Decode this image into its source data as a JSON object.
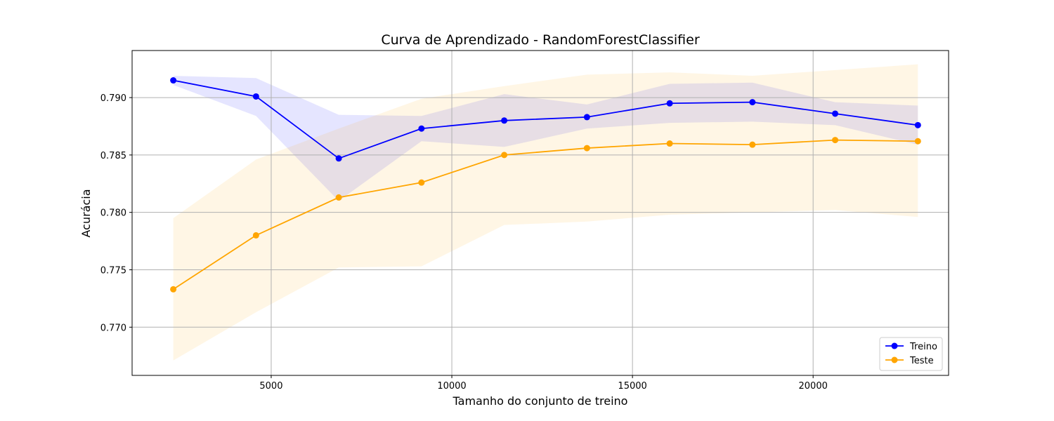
{
  "chart_data": {
    "type": "line",
    "title": "Curva de Aprendizado - RandomForestClassifier",
    "xlabel": "Tamanho do conjunto de treino",
    "ylabel": "Acurácia",
    "xlim": [
      1150,
      23750
    ],
    "ylim": [
      0.7658,
      0.7941
    ],
    "xticks": [
      5000,
      10000,
      15000,
      20000
    ],
    "xtick_labels": [
      "5000",
      "10000",
      "15000",
      "20000"
    ],
    "yticks": [
      0.77,
      0.775,
      0.78,
      0.785,
      0.79
    ],
    "ytick_labels": [
      "0.770",
      "0.775",
      "0.780",
      "0.785",
      "0.790"
    ],
    "grid": true,
    "legend_position": "bottom-right",
    "x": [
      2290,
      4580,
      6870,
      9160,
      11450,
      13740,
      16030,
      18320,
      20610,
      22900
    ],
    "series": [
      {
        "name": "Treino",
        "color": "#0000ff",
        "band_color": "#0000ff",
        "values": [
          0.7915,
          0.7901,
          0.7847,
          0.7873,
          0.788,
          0.7883,
          0.7895,
          0.7896,
          0.7886,
          0.7876
        ],
        "upper": [
          0.7919,
          0.7917,
          0.7885,
          0.7884,
          0.7903,
          0.7894,
          0.7912,
          0.7913,
          0.7896,
          0.7893
        ],
        "lower": [
          0.7911,
          0.7884,
          0.781,
          0.7862,
          0.7857,
          0.7873,
          0.7878,
          0.7879,
          0.7876,
          0.7859
        ]
      },
      {
        "name": "Teste",
        "color": "#ffa500",
        "band_color": "#ffa500",
        "values": [
          0.7733,
          0.778,
          0.7813,
          0.7826,
          0.785,
          0.7856,
          0.786,
          0.7859,
          0.7863,
          0.7862
        ],
        "upper": [
          0.7795,
          0.7846,
          0.7873,
          0.7899,
          0.791,
          0.792,
          0.7922,
          0.7919,
          0.7924,
          0.7929
        ],
        "lower": [
          0.7671,
          0.7713,
          0.7752,
          0.7753,
          0.7789,
          0.7792,
          0.7798,
          0.78,
          0.7802,
          0.7796
        ]
      }
    ]
  }
}
